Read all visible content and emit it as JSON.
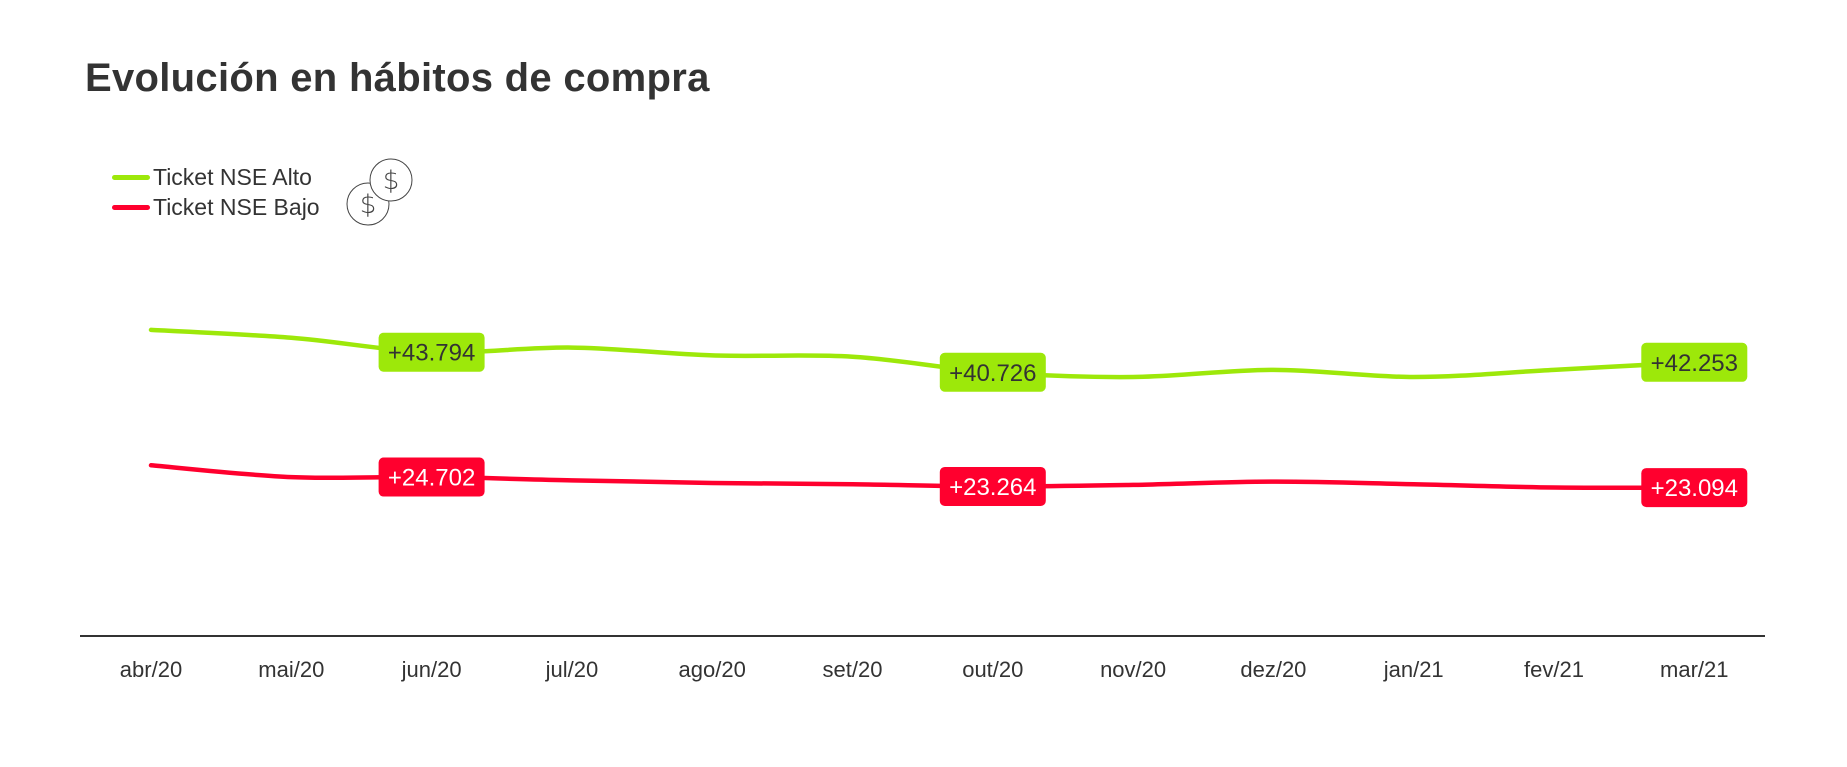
{
  "chart_data": {
    "type": "line",
    "title": "Evolución en hábitos de compra",
    "categories": [
      "abr/20",
      "mai/20",
      "jun/20",
      "jul/20",
      "ago/20",
      "set/20",
      "out/20",
      "nov/20",
      "dez/20",
      "jan/21",
      "fev/21",
      "mar/21"
    ],
    "series": [
      {
        "name": "Ticket NSE Alto",
        "color": "#9de80a",
        "label_text_color": "#333333",
        "values": [
          47.2,
          46.0,
          43.794,
          44.5,
          43.3,
          43.1,
          40.726,
          40.0,
          41.1,
          40.0,
          41.1,
          42.253
        ],
        "data_labels": [
          {
            "index": 2,
            "text": "+43.794"
          },
          {
            "index": 6,
            "text": "+40.726"
          },
          {
            "index": 11,
            "text": "+42.253"
          }
        ]
      },
      {
        "name": "Ticket NSE Bajo",
        "color": "#ff002e",
        "label_text_color": "#ffffff",
        "values": [
          26.5,
          24.7,
          24.702,
          24.2,
          23.8,
          23.6,
          23.264,
          23.5,
          24.0,
          23.6,
          23.1,
          23.094
        ],
        "data_labels": [
          {
            "index": 2,
            "text": "+24.702"
          },
          {
            "index": 6,
            "text": "+23.264"
          },
          {
            "index": 11,
            "text": "+23.094"
          }
        ]
      }
    ],
    "y_axis_visible": false,
    "grid": false,
    "legend_placement": "top-left",
    "legend_icon": "coins-dollar-icon"
  }
}
